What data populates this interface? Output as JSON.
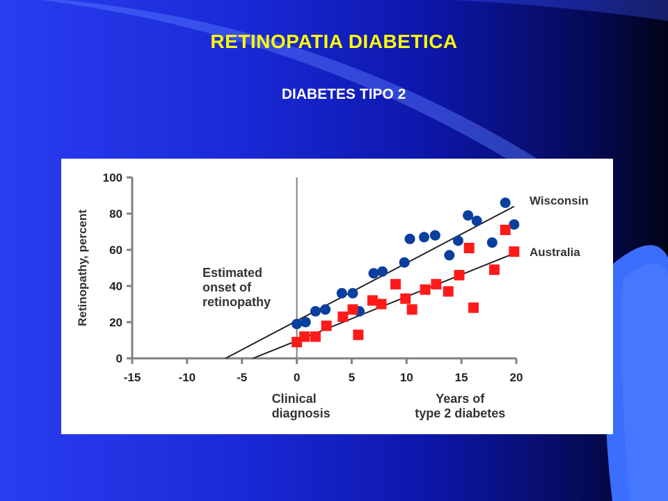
{
  "slide": {
    "title": "RETINOPATIA DIABETICA",
    "subtitle": "DIABETES TIPO 2"
  },
  "colors": {
    "title": "#ffff00",
    "subtitle": "#ffffff",
    "wisconsin": "#0a3f9e",
    "australia": "#ff1a1a",
    "axis": "#808080",
    "line": "#222222"
  },
  "chart_data": {
    "type": "scatter",
    "ylabel": "Retinopathy, percent",
    "xlim": [
      -15,
      20
    ],
    "ylim": [
      0,
      100
    ],
    "xticks": [
      -15,
      -10,
      -5,
      0,
      5,
      10,
      15,
      20
    ],
    "yticks": [
      0,
      20,
      40,
      60,
      80,
      100
    ],
    "x_annotations": [
      {
        "x": 0,
        "lines": [
          "Clinical",
          "diagnosis"
        ]
      },
      {
        "x": 14.5,
        "lines": [
          "Years of",
          "type 2 diabetes"
        ]
      }
    ],
    "annotations": [
      {
        "text_lines": [
          "Estimated",
          "onset of",
          "retinopathy"
        ]
      }
    ],
    "reference_line_x": 0,
    "series": [
      {
        "name": "Wisconsin",
        "marker": "circle",
        "points": [
          [
            0,
            19
          ],
          [
            0.8,
            20
          ],
          [
            1.7,
            26
          ],
          [
            2.6,
            27
          ],
          [
            4.1,
            36
          ],
          [
            5.1,
            36
          ],
          [
            5.7,
            26
          ],
          [
            7,
            47
          ],
          [
            7.8,
            48
          ],
          [
            9.8,
            53
          ],
          [
            10.3,
            66
          ],
          [
            11.6,
            67
          ],
          [
            12.6,
            68
          ],
          [
            13.9,
            57
          ],
          [
            14.7,
            65
          ],
          [
            15.6,
            79
          ],
          [
            16.4,
            76
          ],
          [
            17.8,
            64
          ],
          [
            19,
            86
          ],
          [
            19.8,
            74
          ]
        ],
        "trend": [
          [
            -6.5,
            0
          ],
          [
            19.8,
            84
          ]
        ]
      },
      {
        "name": "Australia",
        "marker": "square",
        "points": [
          [
            0,
            9
          ],
          [
            0.7,
            12
          ],
          [
            1.7,
            12
          ],
          [
            2.7,
            18
          ],
          [
            4.2,
            23
          ],
          [
            5.1,
            27
          ],
          [
            5.6,
            13
          ],
          [
            6.9,
            32
          ],
          [
            7.7,
            30
          ],
          [
            9,
            41
          ],
          [
            9.9,
            33
          ],
          [
            10.5,
            27
          ],
          [
            11.7,
            38
          ],
          [
            12.7,
            41
          ],
          [
            13.8,
            37
          ],
          [
            14.8,
            46
          ],
          [
            15.7,
            61
          ],
          [
            16.1,
            28
          ],
          [
            18,
            49
          ],
          [
            19,
            71
          ],
          [
            19.8,
            59
          ]
        ],
        "trend": [
          [
            -4,
            0
          ],
          [
            19.8,
            58
          ]
        ]
      }
    ]
  }
}
